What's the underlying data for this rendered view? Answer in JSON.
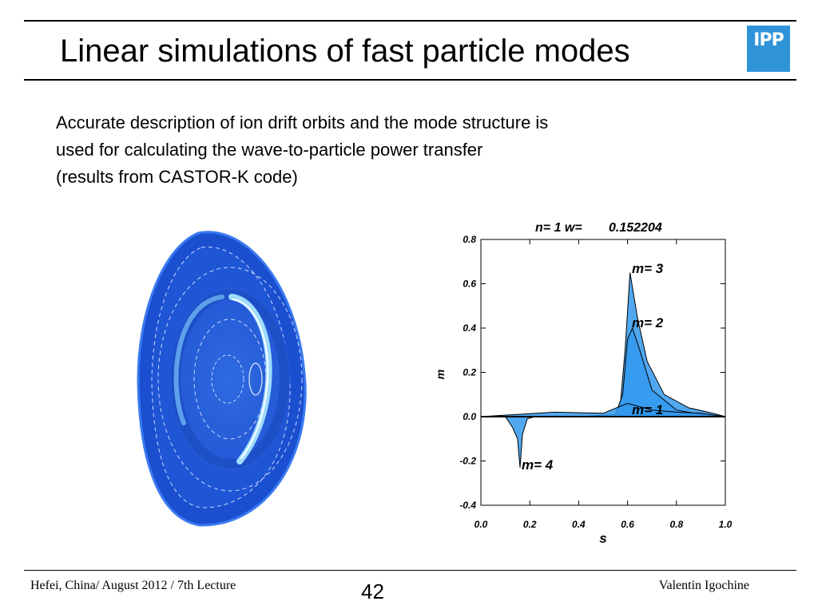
{
  "slide": {
    "title": "Linear simulations of fast particle modes",
    "logo_text": "IPP",
    "body_lines": [
      "Accurate description of ion drift orbits and the mode structure is",
      "used for calculating the wave-to-particle power transfer",
      "(results from CASTOR-K code)"
    ],
    "footer_left": "Hefei, China/ August 2012 / 7th Lecture",
    "page_number": "42",
    "footer_right": "Valentin Igochine",
    "accent_color": "#2f93d8"
  },
  "chart_data": {
    "type": "area",
    "title": "n= 1 w=",
    "title_value": "0.152204",
    "xlabel": "s",
    "ylabel": "m",
    "xlim": [
      0.0,
      1.0
    ],
    "ylim": [
      -0.4,
      0.8
    ],
    "x_ticks": [
      "0.0",
      "0.2",
      "0.4",
      "0.6",
      "0.8",
      "1.0"
    ],
    "y_ticks": [
      "0.8",
      "0.6",
      "0.4",
      "0.2",
      "0.0",
      "-0.2",
      "-0.4"
    ],
    "series": [
      {
        "name": "m= 3",
        "x": [
          0.0,
          0.3,
          0.5,
          0.55,
          0.57,
          0.59,
          0.61,
          0.64,
          0.68,
          0.75,
          0.85,
          0.95,
          1.0
        ],
        "y": [
          0.0,
          0.0,
          0.0,
          0.005,
          0.05,
          0.3,
          0.65,
          0.45,
          0.25,
          0.1,
          0.04,
          0.015,
          0.0
        ]
      },
      {
        "name": "m= 2",
        "x": [
          0.0,
          0.4,
          0.55,
          0.58,
          0.6,
          0.62,
          0.65,
          0.7,
          0.8,
          0.9,
          1.0
        ],
        "y": [
          0.0,
          0.0,
          0.01,
          0.1,
          0.35,
          0.4,
          0.3,
          0.12,
          0.03,
          0.01,
          0.0
        ]
      },
      {
        "name": "m= 1",
        "x": [
          0.0,
          0.3,
          0.5,
          0.6,
          0.7,
          0.8,
          0.9,
          1.0
        ],
        "y": [
          0.0,
          0.02,
          0.015,
          0.06,
          0.03,
          0.02,
          0.015,
          0.0
        ]
      },
      {
        "name": "m= 4",
        "x": [
          0.0,
          0.1,
          0.13,
          0.15,
          0.16,
          0.17,
          0.19,
          0.22,
          0.3
        ],
        "y": [
          0.0,
          0.0,
          -0.05,
          -0.1,
          -0.23,
          -0.08,
          -0.01,
          0.0,
          0.0
        ]
      }
    ],
    "grid": false
  },
  "colors": {
    "chart_fill": "#3399ee",
    "plasma_outer": "#1a4fd0",
    "plasma_inner": "#2f6ae0",
    "plasma_ring": "#9fdcff"
  }
}
